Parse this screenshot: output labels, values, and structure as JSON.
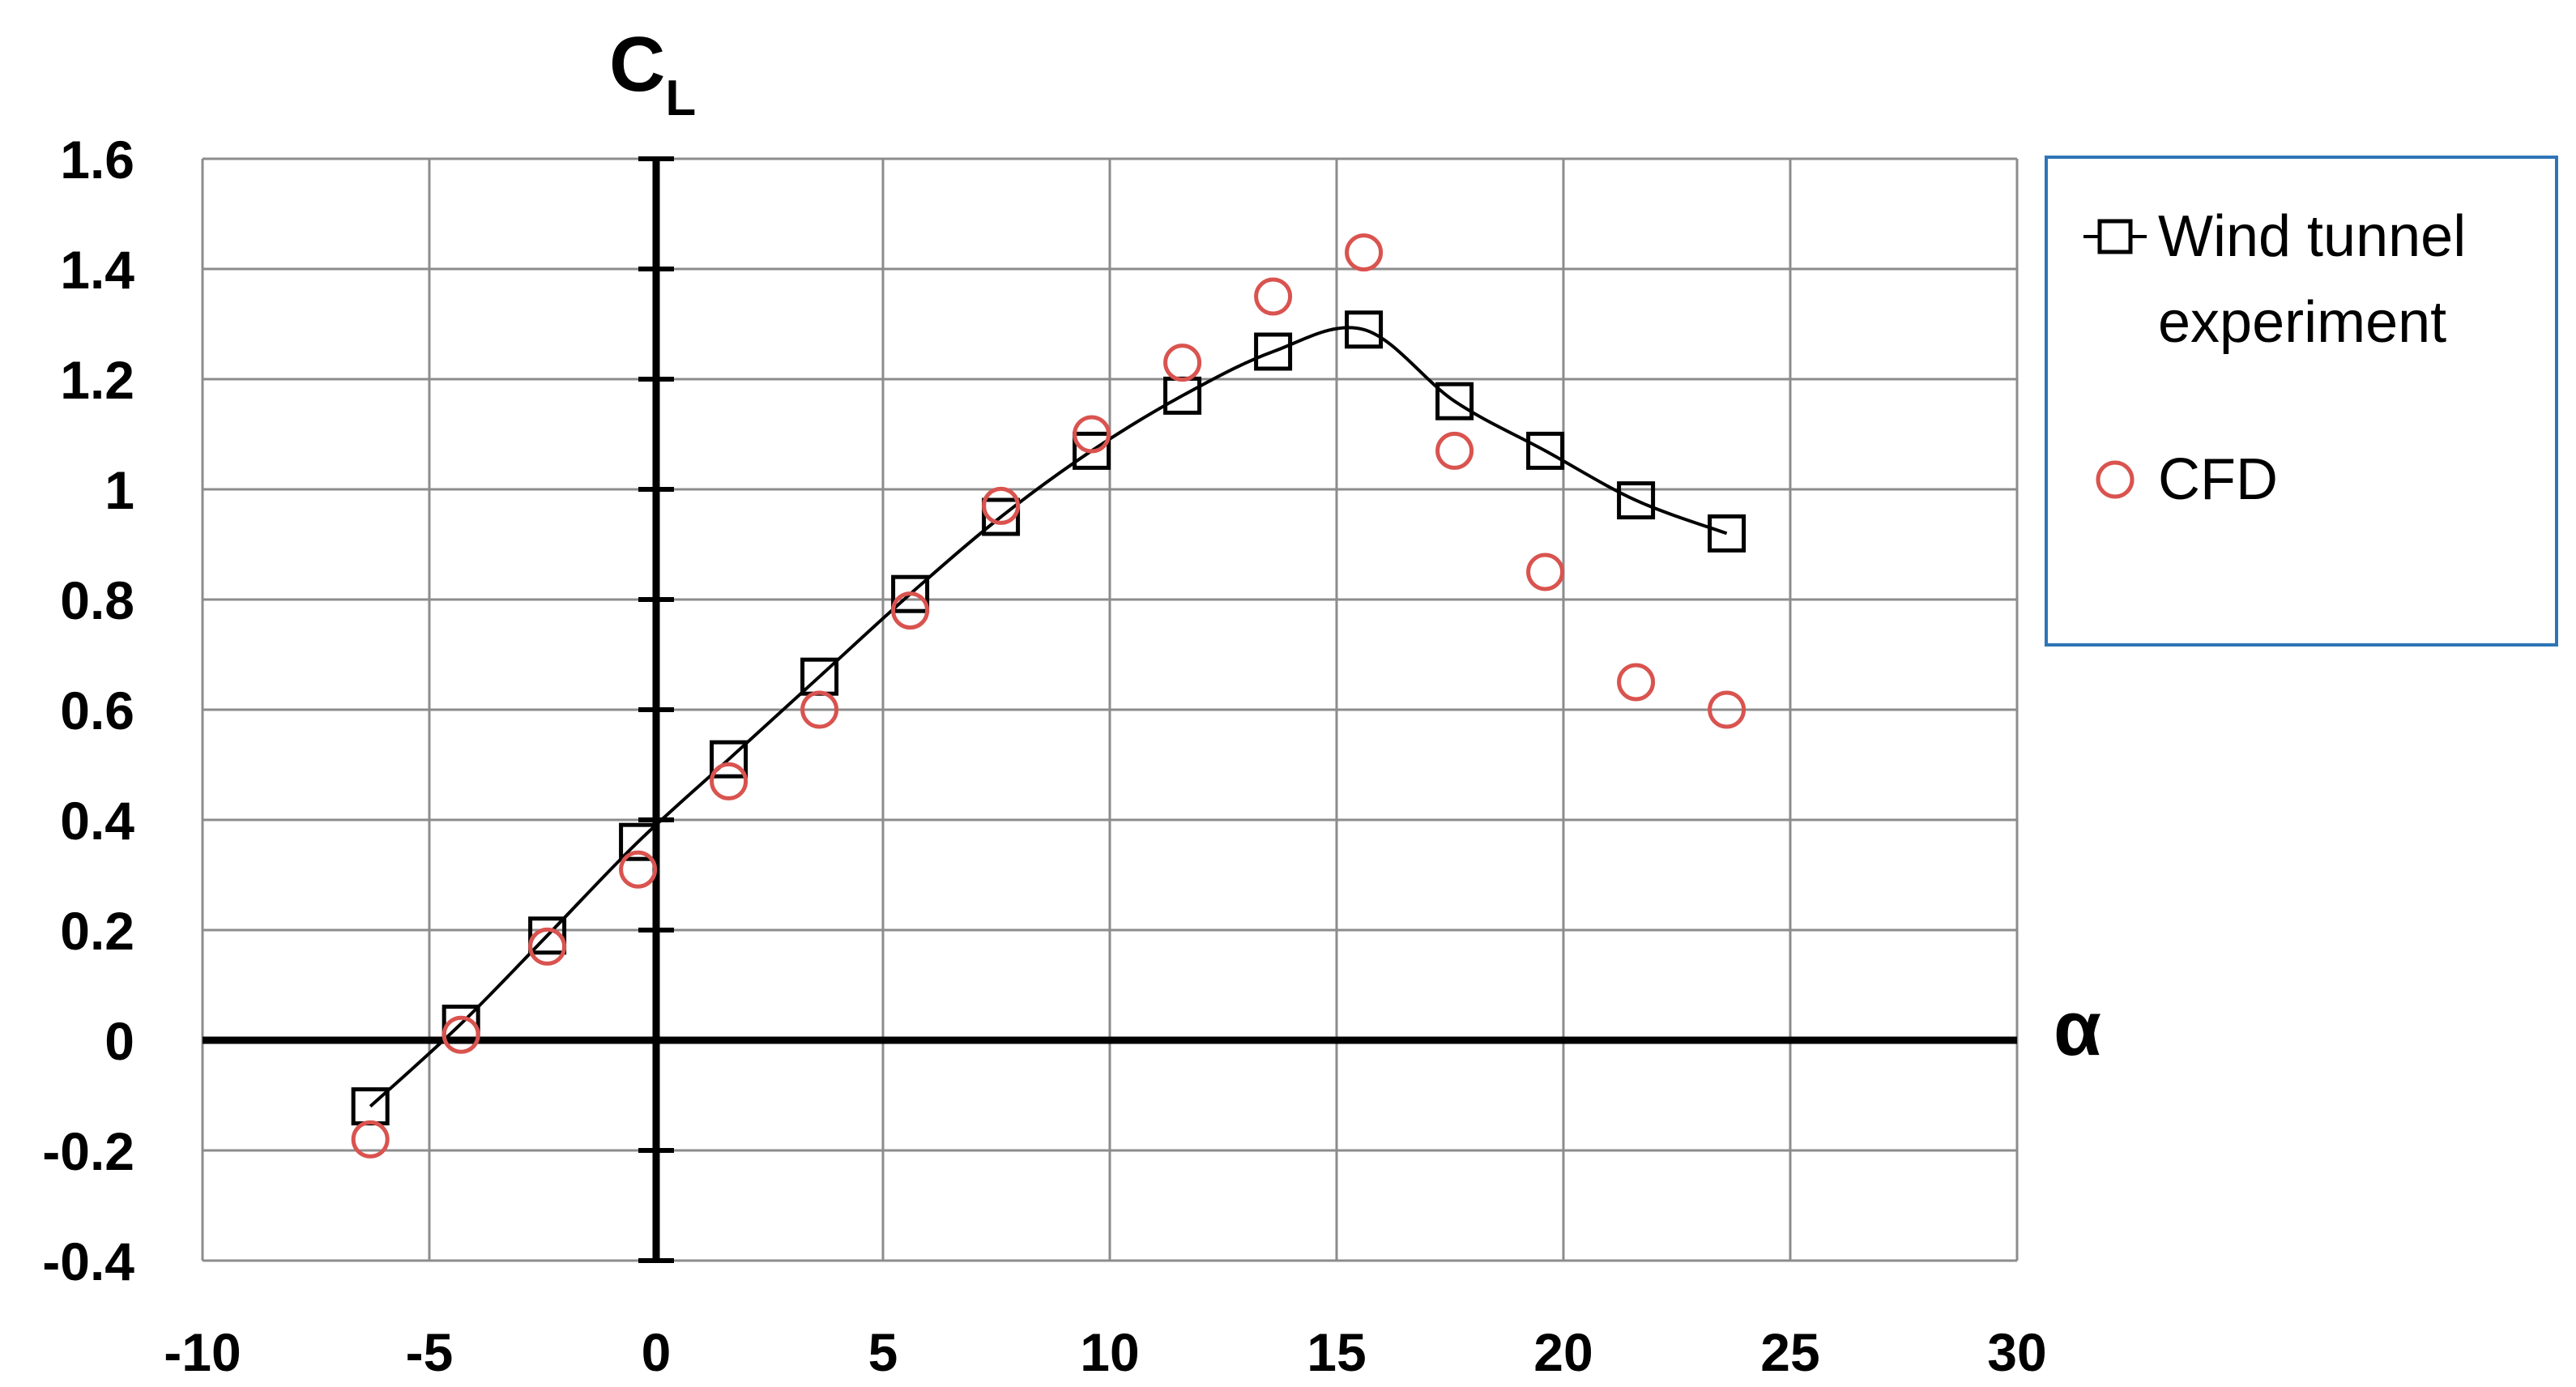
{
  "chart_data": {
    "type": "scatter",
    "xlabel": "α",
    "ylabel": {
      "main": "C",
      "sub": "L"
    },
    "xlim": [
      -10,
      30
    ],
    "ylim": [
      -0.4,
      1.6
    ],
    "xticks": [
      -10,
      -5,
      0,
      5,
      10,
      15,
      20,
      25,
      30
    ],
    "yticks": [
      -0.4,
      -0.2,
      0,
      0.2,
      0.4,
      0.6,
      0.8,
      1,
      1.2,
      1.4,
      1.6
    ],
    "xtick_labels": [
      "-10",
      "-5",
      "0",
      "5",
      "10",
      "15",
      "20",
      "25",
      "30"
    ],
    "ytick_labels": [
      "-0.4",
      "-0.2",
      "0",
      "0.2",
      "0.4",
      "0.6",
      "0.8",
      "1",
      "1.2",
      "1.4",
      "1.6"
    ],
    "grid": true,
    "legend_position": "right",
    "series": [
      {
        "name": "Wind tunnel experiment",
        "legend_lines": [
          "Wind tunnel",
          "experiment"
        ],
        "marker": "square",
        "line": "smooth",
        "color": "#000000",
        "x": [
          -6.3,
          -4.3,
          -2.4,
          -0.4,
          1.6,
          3.6,
          5.6,
          7.6,
          9.6,
          11.6,
          13.6,
          15.6,
          17.6,
          19.6,
          21.6,
          23.6
        ],
        "y": [
          -0.12,
          0.03,
          0.19,
          0.36,
          0.51,
          0.66,
          0.81,
          0.95,
          1.07,
          1.17,
          1.25,
          1.29,
          1.16,
          1.07,
          0.98,
          0.92
        ]
      },
      {
        "name": "CFD",
        "legend_lines": [
          "CFD"
        ],
        "marker": "circle",
        "line": "none",
        "color": "#d9534f",
        "x": [
          -6.3,
          -4.3,
          -2.4,
          -0.4,
          1.6,
          3.6,
          5.6,
          7.6,
          9.6,
          11.6,
          13.6,
          15.6,
          17.6,
          19.6,
          21.6,
          23.6
        ],
        "y": [
          -0.18,
          0.01,
          0.17,
          0.31,
          0.47,
          0.6,
          0.78,
          0.97,
          1.1,
          1.23,
          1.35,
          1.43,
          1.07,
          0.85,
          0.65,
          0.6
        ]
      }
    ]
  }
}
